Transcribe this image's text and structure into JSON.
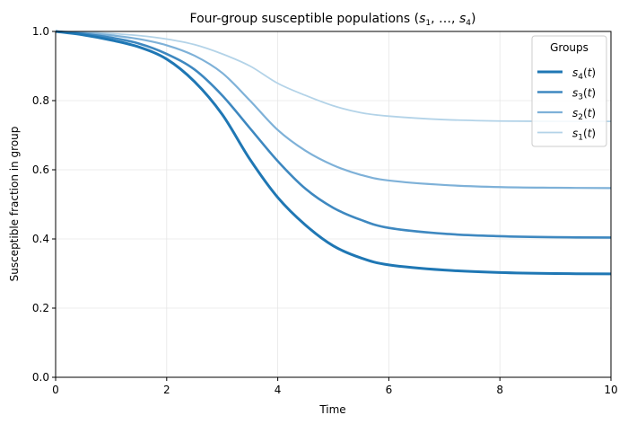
{
  "chart_data": {
    "type": "line",
    "title": "Four-group susceptible populations (s_1, …, s_4)",
    "xlabel": "Time",
    "ylabel": "Susceptible fraction in group",
    "xlim": [
      0,
      10
    ],
    "ylim": [
      0,
      1.0
    ],
    "xticks": [
      0,
      2,
      4,
      6,
      8,
      10
    ],
    "yticks": [
      0.0,
      0.2,
      0.4,
      0.6,
      0.8,
      1.0
    ],
    "xtick_labels": [
      "0",
      "2",
      "4",
      "6",
      "8",
      "10"
    ],
    "ytick_labels": [
      "0.0",
      "0.2",
      "0.4",
      "0.6",
      "0.8",
      "1.0"
    ],
    "grid": true,
    "legend": {
      "title": "Groups",
      "position": "top-right"
    },
    "series": [
      {
        "name": "s_4(t)",
        "color": "#1f77b4",
        "x": [
          0,
          0.5,
          1,
          1.5,
          2,
          2.5,
          3,
          3.5,
          4,
          4.5,
          5,
          5.5,
          6,
          7,
          8,
          9,
          10
        ],
        "values": [
          1.0,
          0.99,
          0.975,
          0.955,
          0.92,
          0.855,
          0.76,
          0.63,
          0.52,
          0.44,
          0.38,
          0.345,
          0.325,
          0.31,
          0.303,
          0.3,
          0.299
        ]
      },
      {
        "name": "s_3(t)",
        "color": "#3e88c0",
        "x": [
          0,
          0.5,
          1,
          1.5,
          2,
          2.5,
          3,
          3.5,
          4,
          4.5,
          5,
          5.5,
          6,
          7,
          8,
          9,
          10
        ],
        "values": [
          1.0,
          0.993,
          0.982,
          0.965,
          0.935,
          0.89,
          0.815,
          0.72,
          0.625,
          0.545,
          0.49,
          0.455,
          0.432,
          0.415,
          0.408,
          0.405,
          0.404
        ]
      },
      {
        "name": "s_2(t)",
        "color": "#7eb1d8",
        "x": [
          0,
          0.5,
          1,
          1.5,
          2,
          2.5,
          3,
          3.5,
          4,
          4.5,
          5,
          5.5,
          6,
          7,
          8,
          9,
          10
        ],
        "values": [
          1.0,
          0.996,
          0.989,
          0.978,
          0.96,
          0.93,
          0.88,
          0.8,
          0.715,
          0.655,
          0.613,
          0.585,
          0.569,
          0.556,
          0.55,
          0.548,
          0.547
        ]
      },
      {
        "name": "s_1(t)",
        "color": "#b3d3e8",
        "x": [
          0,
          0.5,
          1,
          1.5,
          2,
          2.5,
          3,
          3.5,
          4,
          4.5,
          5,
          5.5,
          6,
          7,
          8,
          9,
          10
        ],
        "values": [
          1.0,
          0.998,
          0.994,
          0.988,
          0.978,
          0.962,
          0.935,
          0.9,
          0.85,
          0.815,
          0.785,
          0.765,
          0.755,
          0.745,
          0.741,
          0.74,
          0.74
        ]
      }
    ]
  }
}
